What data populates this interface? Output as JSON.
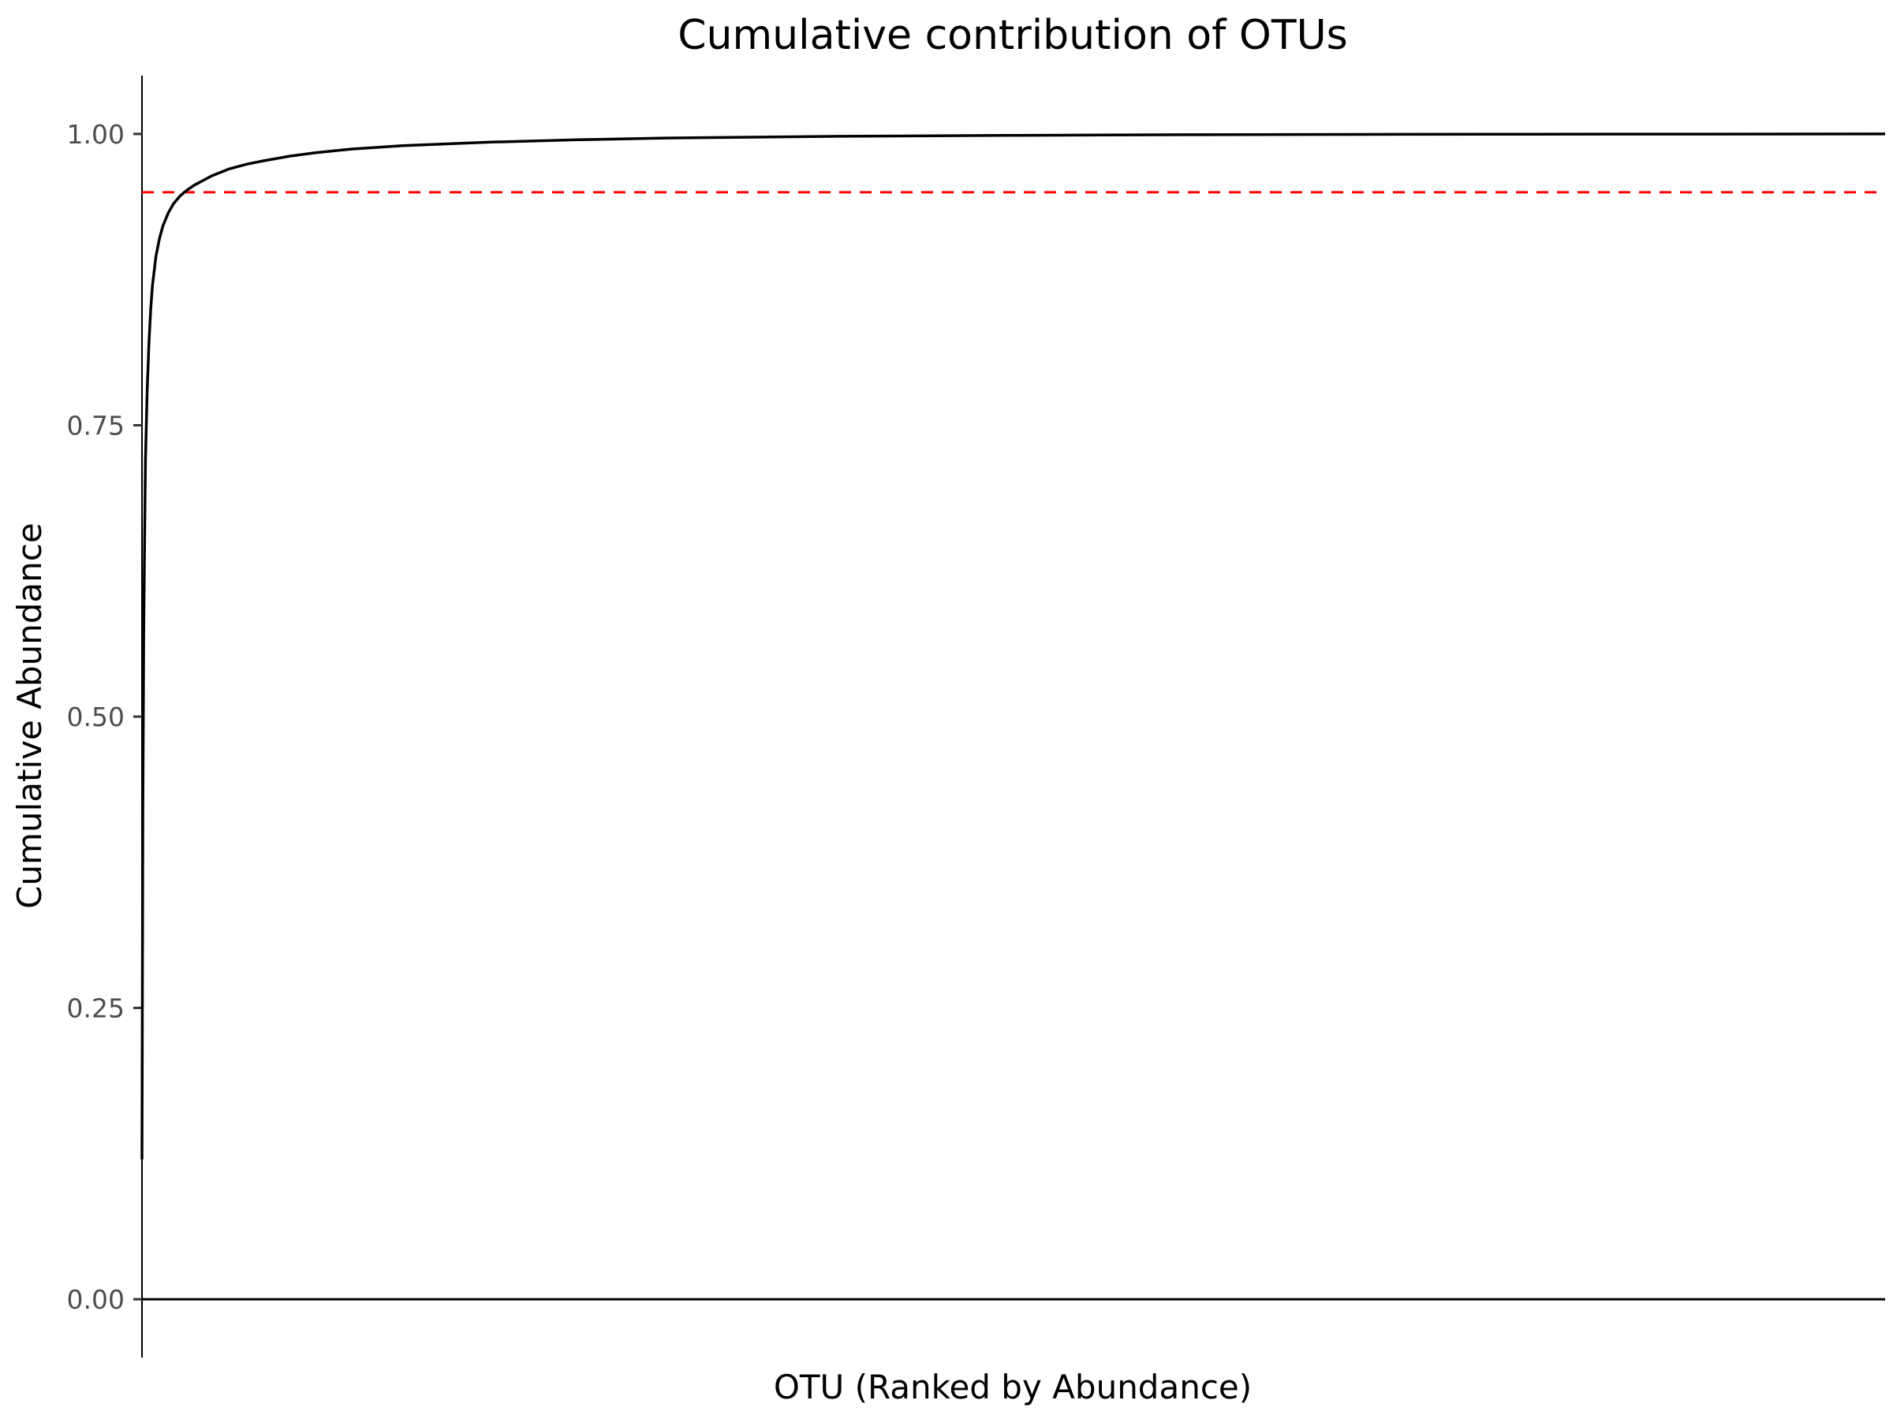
{
  "chart_data": {
    "type": "line",
    "title": "Cumulative contribution of OTUs",
    "xlabel": "OTU (Ranked by Abundance)",
    "ylabel": "Cumulative Abundance",
    "ylim": [
      -0.05,
      1.05
    ],
    "yticks": [
      0.0,
      0.25,
      0.5,
      0.75,
      1.0
    ],
    "ytick_labels": [
      "0.00",
      "0.25",
      "0.50",
      "0.75",
      "1.00"
    ],
    "x_tick_labels_shown": false,
    "grid": false,
    "legend": "none",
    "series": [
      {
        "values_x_fraction": [
          0.0,
          0.0005,
          0.001,
          0.0015,
          0.002,
          0.003,
          0.004,
          0.005,
          0.006,
          0.008,
          0.01,
          0.012,
          0.015,
          0.018,
          0.022,
          0.026,
          0.03,
          0.035,
          0.04,
          0.05,
          0.06,
          0.07,
          0.085,
          0.1,
          0.12,
          0.15,
          0.2,
          0.25,
          0.3,
          0.4,
          0.5,
          0.6,
          0.7,
          0.8,
          0.9,
          1.0
        ],
        "values_y": [
          0.12,
          0.42,
          0.57,
          0.65,
          0.72,
          0.78,
          0.82,
          0.85,
          0.87,
          0.895,
          0.91,
          0.921,
          0.932,
          0.94,
          0.947,
          0.952,
          0.956,
          0.96,
          0.964,
          0.97,
          0.974,
          0.977,
          0.981,
          0.984,
          0.987,
          0.99,
          0.993,
          0.995,
          0.9965,
          0.998,
          0.9988,
          0.9993,
          0.9996,
          0.9998,
          0.9999,
          1.0
        ],
        "color": "#000000"
      }
    ],
    "reference_lines": [
      {
        "orientation": "horizontal",
        "y": 0.95,
        "style": "dashed",
        "color": "#ff0000"
      },
      {
        "orientation": "horizontal",
        "y": 0.0,
        "style": "solid",
        "color": "#000000"
      }
    ]
  }
}
